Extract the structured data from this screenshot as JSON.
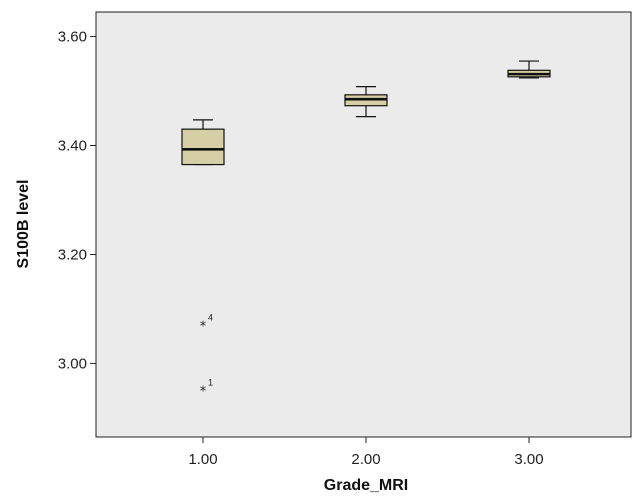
{
  "chart_data": {
    "type": "boxplot",
    "xlabel": "Grade_MRI",
    "ylabel": "S100B level",
    "categories": [
      "1.00",
      "2.00",
      "3.00"
    ],
    "yticks": [
      "3.00",
      "3.20",
      "3.40",
      "3.60"
    ],
    "ytick_values": [
      3.0,
      3.2,
      3.4,
      3.6
    ],
    "ylim": [
      2.865,
      3.645
    ],
    "grid": false,
    "colors": {
      "plot_background": "#ebebeb",
      "box_fill": "#d6cfa6",
      "stroke": "#111111"
    },
    "boxes": [
      {
        "category": "1.00",
        "whisker_low": 3.365,
        "q1": 3.365,
        "median": 3.393,
        "q3": 3.43,
        "whisker_high": 3.447,
        "outliers": [
          {
            "value": 3.07,
            "label": "4"
          },
          {
            "value": 2.95,
            "label": "1"
          }
        ]
      },
      {
        "category": "2.00",
        "whisker_low": 3.453,
        "q1": 3.473,
        "median": 3.485,
        "q3": 3.493,
        "whisker_high": 3.508,
        "outliers": []
      },
      {
        "category": "3.00",
        "whisker_low": 3.524,
        "q1": 3.526,
        "median": 3.531,
        "q3": 3.538,
        "whisker_high": 3.555,
        "outliers": []
      }
    ]
  }
}
